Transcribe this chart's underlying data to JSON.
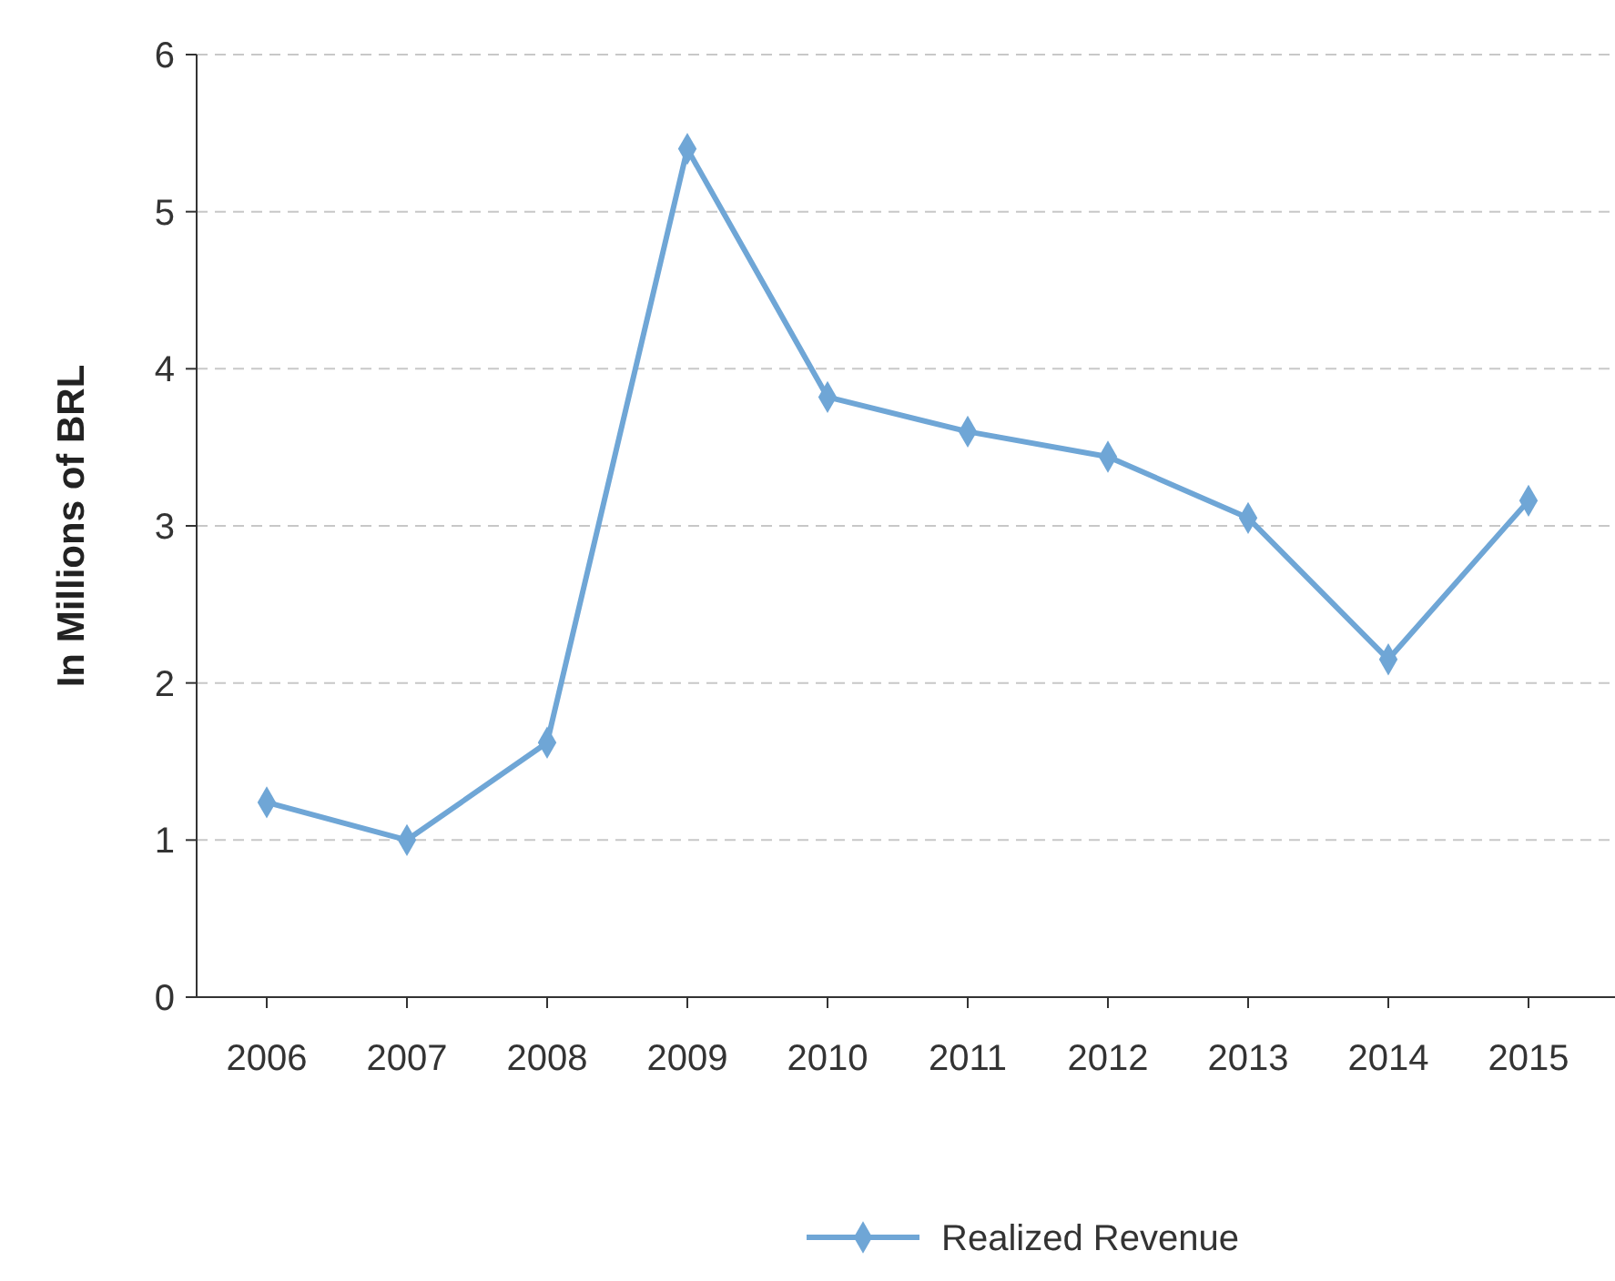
{
  "chart_data": {
    "type": "line",
    "ylabel": "In Millions of BRL",
    "categories": [
      "2006",
      "2007",
      "2008",
      "2009",
      "2010",
      "2011",
      "2012",
      "2013",
      "2014",
      "2015"
    ],
    "series": [
      {
        "name": "Realized Revenue",
        "color": "#6fa6d6",
        "values": [
          1.24,
          1.0,
          1.62,
          5.4,
          3.82,
          3.6,
          3.44,
          3.05,
          2.15,
          3.16
        ]
      }
    ],
    "ylim": [
      0,
      6
    ],
    "yticks": [
      0,
      1,
      2,
      3,
      4,
      5,
      6
    ],
    "grid": "y",
    "legend": "bottom",
    "marker": "diamond",
    "line_style": "solid"
  }
}
